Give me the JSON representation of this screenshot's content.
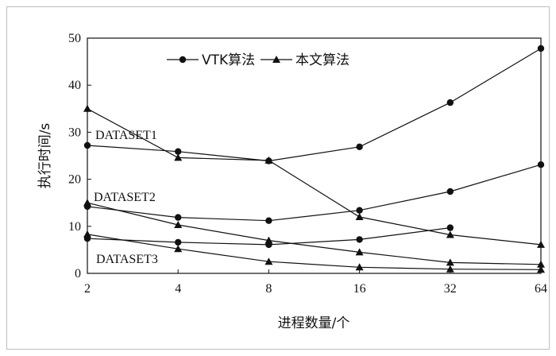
{
  "chart_data": {
    "type": "line",
    "xlabel": "进程数量/个",
    "ylabel": "执行时间/s",
    "x_scale": "log2",
    "categories": [
      "2",
      "4",
      "8",
      "16",
      "32",
      "64"
    ],
    "x": [
      2,
      4,
      8,
      16,
      32,
      64
    ],
    "ylim": [
      0,
      50
    ],
    "yticks": [
      "0",
      "10",
      "20",
      "30",
      "40",
      "50"
    ],
    "grid": false,
    "legend_position": "top",
    "legend": [
      {
        "label": "VTK算法",
        "marker": "circle"
      },
      {
        "label": "本文算法",
        "marker": "triangle"
      }
    ],
    "annotations": [
      "DATASET1",
      "DATASET2",
      "DATASET3"
    ],
    "series": [
      {
        "dataset": "DATASET1",
        "method": "VTK算法",
        "marker": "circle",
        "x": [
          2,
          4,
          8,
          16,
          32,
          64
        ],
        "values": [
          27.2,
          25.9,
          23.9,
          26.9,
          36.3,
          47.8
        ]
      },
      {
        "dataset": "DATASET1",
        "method": "本文算法",
        "marker": "triangle",
        "x": [
          2,
          4,
          8,
          16,
          32,
          64
        ],
        "values": [
          35.0,
          24.6,
          24.0,
          12.0,
          8.2,
          6.1
        ]
      },
      {
        "dataset": "DATASET2",
        "method": "VTK算法",
        "marker": "circle",
        "x": [
          2,
          4,
          8,
          16,
          32,
          64
        ],
        "values": [
          14.2,
          11.9,
          11.2,
          13.4,
          17.4,
          23.1
        ]
      },
      {
        "dataset": "DATASET2",
        "method": "本文算法",
        "marker": "triangle",
        "x": [
          2,
          4,
          8,
          16,
          32,
          64
        ],
        "values": [
          15.0,
          10.3,
          7.0,
          4.5,
          2.3,
          1.9
        ]
      },
      {
        "dataset": "DATASET3",
        "method": "VTK算法",
        "marker": "circle",
        "x": [
          2,
          4,
          8,
          16,
          32
        ],
        "values": [
          7.4,
          6.6,
          6.1,
          7.2,
          9.7
        ]
      },
      {
        "dataset": "DATASET3",
        "method": "本文算法",
        "marker": "triangle",
        "x": [
          2,
          4,
          8,
          16,
          32,
          64
        ],
        "values": [
          8.3,
          5.2,
          2.5,
          1.3,
          0.9,
          0.8
        ]
      }
    ]
  }
}
